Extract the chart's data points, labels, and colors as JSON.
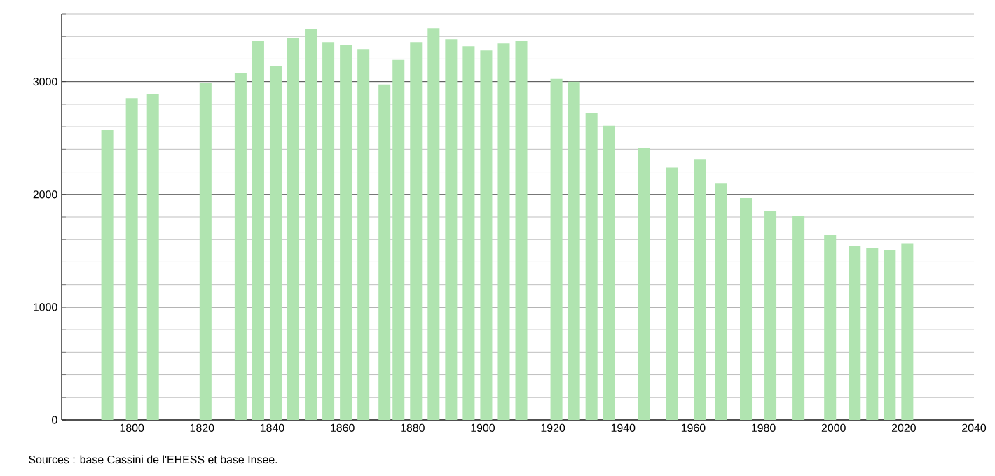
{
  "chart_data": {
    "type": "bar",
    "color": "#b0e4b0",
    "x": [
      1793,
      1800,
      1806,
      1821,
      1831,
      1836,
      1841,
      1846,
      1851,
      1856,
      1861,
      1866,
      1872,
      1876,
      1881,
      1886,
      1891,
      1896,
      1901,
      1906,
      1911,
      1921,
      1926,
      1931,
      1936,
      1946,
      1954,
      1962,
      1968,
      1975,
      1982,
      1990,
      1999,
      2006,
      2011,
      2016,
      2021
    ],
    "values": [
      2575,
      2854,
      2888,
      2992,
      3075,
      3363,
      3138,
      3388,
      3463,
      3350,
      3325,
      3288,
      2975,
      3192,
      3350,
      3475,
      3375,
      3313,
      3275,
      3338,
      3363,
      3025,
      3000,
      2725,
      2608,
      2408,
      2238,
      2313,
      2096,
      1967,
      1850,
      1808,
      1638,
      1542,
      1525,
      1508,
      1567
    ],
    "xlim": [
      1780,
      2040
    ],
    "xticks": [
      1800,
      1820,
      1840,
      1860,
      1880,
      1900,
      1920,
      1940,
      1960,
      1980,
      2000,
      2020,
      2040
    ],
    "ylim": [
      0,
      3600
    ],
    "yticks": [
      0,
      {
        "value": 200,
        "label": null
      },
      {
        "value": 400,
        "label": null
      },
      {
        "value": 600,
        "label": null
      },
      {
        "value": 800,
        "label": null
      },
      1000,
      {
        "value": 1200,
        "label": null
      },
      {
        "value": 1400,
        "label": null
      },
      {
        "value": 1600,
        "label": null
      },
      {
        "value": 1800,
        "label": null
      },
      2000,
      {
        "value": 2200,
        "label": null
      },
      {
        "value": 2400,
        "label": null
      },
      {
        "value": 2600,
        "label": null
      },
      {
        "value": 2800,
        "label": null
      },
      3000,
      {
        "value": 3200,
        "label": null
      },
      {
        "value": 3400,
        "label": null
      },
      {
        "value": 3600,
        "label": null
      }
    ],
    "grid": "y",
    "annotations": [
      "Sources : base Cassini de l'EHESS et base Insee."
    ]
  }
}
